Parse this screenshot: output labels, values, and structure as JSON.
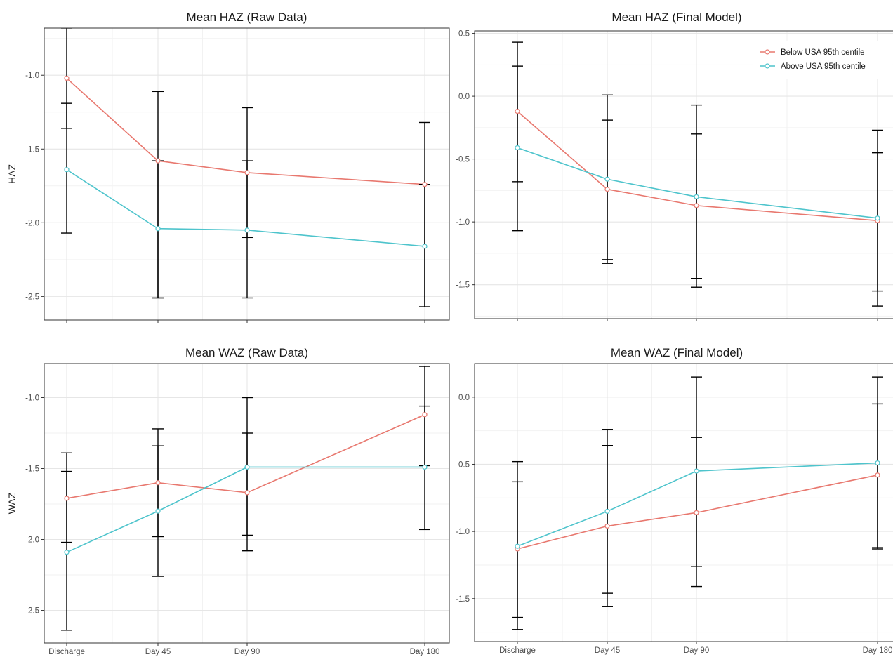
{
  "colors": {
    "below": "#E8786F",
    "above": "#4EC4CC",
    "errorbar": "#000000",
    "panel_border": "#333333",
    "grid_major": "#e6e6e6",
    "grid_minor": "#f2f2f2"
  },
  "legend": {
    "placement": "top-right of Mean HAZ (Final Model)",
    "items": [
      {
        "label": "Below USA 95th centile",
        "color": "#E8786F"
      },
      {
        "label": "Above USA 95th centile",
        "color": "#4EC4CC"
      }
    ]
  },
  "chart_data": [
    {
      "type": "line",
      "title": "Mean HAZ (Raw Data)",
      "xlabel": "",
      "ylabel": "HAZ",
      "ylim": [
        -2.66,
        -0.68
      ],
      "yticks": [
        -1.0,
        -1.5,
        -2.0,
        -2.5
      ],
      "ytick_labels": [
        "-1.0",
        "-1.5",
        "-2.0",
        "-2.5"
      ],
      "x_categories": [
        "Discharge",
        "Day 45",
        "Day 90",
        "Day 180"
      ],
      "x": [
        0,
        45,
        90,
        180
      ],
      "show_x_labels": false,
      "series": [
        {
          "key": "below",
          "values": [
            -1.02,
            -1.58,
            -1.66,
            -1.74
          ],
          "lower": [
            -1.36,
            -2.51,
            -2.1,
            -2.57
          ],
          "upper": [
            -0.68,
            -1.11,
            -1.22,
            -1.32
          ]
        },
        {
          "key": "above",
          "values": [
            -1.64,
            -2.04,
            -2.05,
            -2.16
          ],
          "lower": [
            -2.07,
            -2.51,
            -2.51,
            -2.57
          ],
          "upper": [
            -1.19,
            -1.58,
            -1.58,
            -1.74
          ]
        }
      ]
    },
    {
      "type": "line",
      "title": "Mean HAZ (Final Model)",
      "xlabel": "",
      "ylabel": "",
      "ylim": [
        -1.77,
        0.52
      ],
      "yticks": [
        0.5,
        0.0,
        -0.5,
        -1.0,
        -1.5
      ],
      "ytick_labels": [
        "0.5",
        "0.0",
        "-0.5",
        "-1.0",
        "-1.5"
      ],
      "x_categories": [
        "Discharge",
        "Day 45",
        "Day 90",
        "Day 180"
      ],
      "x": [
        0,
        45,
        90,
        180
      ],
      "show_x_labels": false,
      "series": [
        {
          "key": "below",
          "values": [
            -0.12,
            -0.74,
            -0.87,
            -0.99
          ],
          "lower": [
            -0.68,
            -1.3,
            -1.45,
            -1.55
          ],
          "upper": [
            0.43,
            -0.19,
            -0.3,
            -0.45
          ]
        },
        {
          "key": "above",
          "values": [
            -0.41,
            -0.66,
            -0.8,
            -0.97
          ],
          "lower": [
            -1.07,
            -1.33,
            -1.52,
            -1.67
          ],
          "upper": [
            0.24,
            0.01,
            -0.07,
            -0.27
          ]
        }
      ]
    },
    {
      "type": "line",
      "title": "Mean WAZ (Raw Data)",
      "xlabel": "",
      "ylabel": "WAZ",
      "ylim": [
        -2.73,
        -0.76
      ],
      "yticks": [
        -1.0,
        -1.5,
        -2.0,
        -2.5
      ],
      "ytick_labels": [
        "-1.0",
        "-1.5",
        "-2.0",
        "-2.5"
      ],
      "x_categories": [
        "Discharge",
        "Day 45",
        "Day 90",
        "Day 180"
      ],
      "x": [
        0,
        45,
        90,
        180
      ],
      "show_x_labels": true,
      "series": [
        {
          "key": "below",
          "values": [
            -1.71,
            -1.6,
            -1.67,
            -1.12
          ],
          "lower": [
            -2.02,
            -1.98,
            -2.08,
            -1.48
          ],
          "upper": [
            -1.39,
            -1.22,
            -1.25,
            -0.78
          ]
        },
        {
          "key": "above",
          "values": [
            -2.09,
            -1.8,
            -1.49,
            -1.49
          ],
          "lower": [
            -2.64,
            -2.26,
            -1.97,
            -1.93
          ],
          "upper": [
            -1.52,
            -1.34,
            -1.0,
            -1.06
          ]
        }
      ]
    },
    {
      "type": "line",
      "title": "Mean WAZ (Final Model)",
      "xlabel": "",
      "ylabel": "",
      "ylim": [
        -1.82,
        0.25
      ],
      "yticks": [
        0.0,
        -0.5,
        -1.0,
        -1.5
      ],
      "ytick_labels": [
        "0.0",
        "-0.5",
        "-1.0",
        "-1.5"
      ],
      "x_categories": [
        "Discharge",
        "Day 45",
        "Day 90",
        "Day 180"
      ],
      "x": [
        0,
        45,
        90,
        180
      ],
      "show_x_labels": true,
      "series": [
        {
          "key": "below",
          "values": [
            -1.13,
            -0.96,
            -0.86,
            -0.58
          ],
          "lower": [
            -1.73,
            -1.56,
            -1.41,
            -1.13
          ],
          "upper": [
            -0.63,
            -0.36,
            -0.3,
            -0.05
          ]
        },
        {
          "key": "above",
          "values": [
            -1.11,
            -0.85,
            -0.55,
            -0.49
          ],
          "lower": [
            -1.64,
            -1.46,
            -1.26,
            -1.12
          ],
          "upper": [
            -0.48,
            -0.24,
            0.15,
            0.15
          ]
        }
      ]
    }
  ]
}
